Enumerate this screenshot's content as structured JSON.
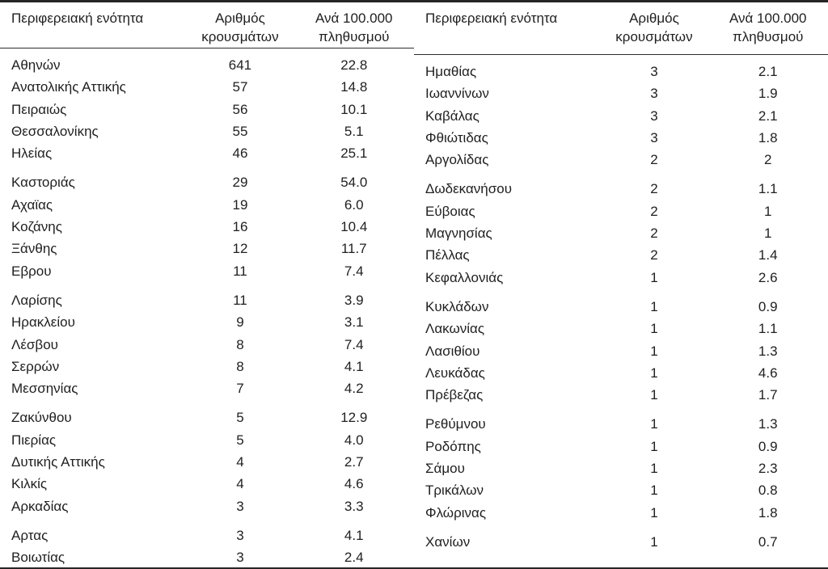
{
  "colors": {
    "background": "#ffffff",
    "text": "#1f1f1f",
    "rule": "#262626"
  },
  "header": {
    "region": "Περιφερειακή ενότητα",
    "cases": "Αριθμός κρουσμάτων",
    "rate": "Ανά 100.000 πληθυσμού"
  },
  "left_table": {
    "groups": [
      {
        "rows": [
          {
            "region": "Αθηνών",
            "cases": "641",
            "rate": "22.8"
          },
          {
            "region": "Ανατολικής Αττικής",
            "cases": "57",
            "rate": "14.8"
          },
          {
            "region": "Πειραιώς",
            "cases": "56",
            "rate": "10.1"
          },
          {
            "region": "Θεσσαλονίκης",
            "cases": "55",
            "rate": "5.1"
          },
          {
            "region": "Ηλείας",
            "cases": "46",
            "rate": "25.1"
          }
        ]
      },
      {
        "rows": [
          {
            "region": "Καστοριάς",
            "cases": "29",
            "rate": "54.0"
          },
          {
            "region": "Αχαϊας",
            "cases": "19",
            "rate": "6.0"
          },
          {
            "region": "Κοζάνης",
            "cases": "16",
            "rate": "10.4"
          },
          {
            "region": "Ξάνθης",
            "cases": "12",
            "rate": "11.7"
          },
          {
            "region": "Εβρου",
            "cases": "11",
            "rate": "7.4"
          }
        ]
      },
      {
        "rows": [
          {
            "region": "Λαρίσης",
            "cases": "11",
            "rate": "3.9"
          },
          {
            "region": "Ηρακλείου",
            "cases": "9",
            "rate": "3.1"
          },
          {
            "region": "Λέσβου",
            "cases": "8",
            "rate": "7.4"
          },
          {
            "region": "Σερρών",
            "cases": "8",
            "rate": "4.1"
          },
          {
            "region": "Μεσσηνίας",
            "cases": "7",
            "rate": "4.2"
          }
        ]
      },
      {
        "rows": [
          {
            "region": "Ζακύνθου",
            "cases": "5",
            "rate": "12.9"
          },
          {
            "region": "Πιερίας",
            "cases": "5",
            "rate": "4.0"
          },
          {
            "region": "Δυτικής Αττικής",
            "cases": "4",
            "rate": "2.7"
          },
          {
            "region": "Κιλκίς",
            "cases": "4",
            "rate": "4.6"
          },
          {
            "region": "Αρκαδίας",
            "cases": "3",
            "rate": "3.3"
          }
        ]
      },
      {
        "rows": [
          {
            "region": "Αρτας",
            "cases": "3",
            "rate": "4.1"
          },
          {
            "region": "Βοιωτίας",
            "cases": "3",
            "rate": "2.4"
          }
        ]
      }
    ]
  },
  "right_table": {
    "groups": [
      {
        "rows": [
          {
            "region": "Ημαθίας",
            "cases": "3",
            "rate": "2.1"
          },
          {
            "region": "Ιωαννίνων",
            "cases": "3",
            "rate": "1.9"
          },
          {
            "region": "Καβάλας",
            "cases": "3",
            "rate": "2.1"
          },
          {
            "region": "Φθιώτιδας",
            "cases": "3",
            "rate": "1.8"
          },
          {
            "region": "Αργολίδας",
            "cases": "2",
            "rate": "2"
          }
        ]
      },
      {
        "rows": [
          {
            "region": "Δωδεκανήσου",
            "cases": "2",
            "rate": "1.1"
          },
          {
            "region": "Εύβοιας",
            "cases": "2",
            "rate": "1"
          },
          {
            "region": "Μαγνησίας",
            "cases": "2",
            "rate": "1"
          },
          {
            "region": "Πέλλας",
            "cases": "2",
            "rate": "1.4"
          },
          {
            "region": "Κεφαλλονιάς",
            "cases": "1",
            "rate": "2.6"
          }
        ]
      },
      {
        "rows": [
          {
            "region": "Κυκλάδων",
            "cases": "1",
            "rate": "0.9"
          },
          {
            "region": "Λακωνίας",
            "cases": "1",
            "rate": "1.1"
          },
          {
            "region": "Λασιθίου",
            "cases": "1",
            "rate": "1.3"
          },
          {
            "region": "Λευκάδας",
            "cases": "1",
            "rate": "4.6"
          },
          {
            "region": "Πρέβεζας",
            "cases": "1",
            "rate": "1.7"
          }
        ]
      },
      {
        "rows": [
          {
            "region": "Ρεθύμνου",
            "cases": "1",
            "rate": "1.3"
          },
          {
            "region": "Ροδόπης",
            "cases": "1",
            "rate": "0.9"
          },
          {
            "region": "Σάμου",
            "cases": "1",
            "rate": "2.3"
          },
          {
            "region": "Τρικάλων",
            "cases": "1",
            "rate": "0.8"
          },
          {
            "region": "Φλώρινας",
            "cases": "1",
            "rate": "1.8"
          }
        ]
      },
      {
        "rows": [
          {
            "region": "Χανίων",
            "cases": "1",
            "rate": "0.7"
          }
        ]
      }
    ]
  }
}
